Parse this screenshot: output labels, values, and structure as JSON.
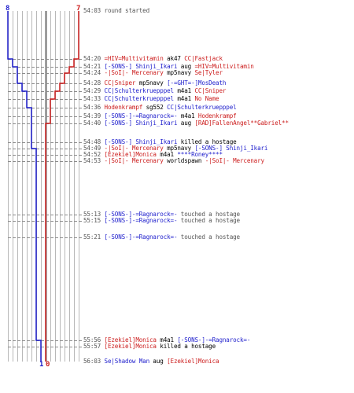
{
  "colors": {
    "team_blue": "#1d1dcc",
    "team_red": "#cc1d1d",
    "gray_text": "#555555",
    "grid": "#b8b8b8",
    "guide": "#8c8c8c",
    "divider": "#6d6d6d"
  },
  "counts": {
    "blue_start": "8",
    "red_start": "7",
    "blue_end": "1",
    "red_end": "0"
  },
  "log": [
    {
      "time": "54:03",
      "parts": [
        {
          "text": "round started",
          "c": "gray"
        }
      ]
    },
    {
      "time": "54:20",
      "parts": [
        {
          "text": "=HIV=Multivitamin",
          "c": "red"
        },
        {
          "text": " ak47 ",
          "c": "black"
        },
        {
          "text": "CC|Fastjack",
          "c": "red"
        }
      ]
    },
    {
      "time": "54:21",
      "parts": [
        {
          "text": "[-SONS-] Shinji_Ikari",
          "c": "blue"
        },
        {
          "text": " aug ",
          "c": "black"
        },
        {
          "text": "=HIV=Multivitamin",
          "c": "red"
        }
      ]
    },
    {
      "time": "54:24",
      "parts": [
        {
          "text": "-|SoI|- Mercenary",
          "c": "red"
        },
        {
          "text": " mp5navy ",
          "c": "black"
        },
        {
          "text": "Se|Tyler",
          "c": "red"
        }
      ]
    },
    {
      "time": "54:28",
      "parts": [
        {
          "text": "CC|Sniper",
          "c": "red"
        },
        {
          "text": " mp5navy ",
          "c": "black"
        },
        {
          "text": "[-=GHT=-]MosDeath",
          "c": "blue"
        }
      ]
    },
    {
      "time": "54:29",
      "parts": [
        {
          "text": "CC|Schulterkruepppel",
          "c": "blue"
        },
        {
          "text": " m4a1 ",
          "c": "black"
        },
        {
          "text": "CC|Sniper",
          "c": "red"
        }
      ]
    },
    {
      "time": "54:33",
      "parts": [
        {
          "text": "CC|Schulterkruepppel",
          "c": "blue"
        },
        {
          "text": " m4a1 ",
          "c": "black"
        },
        {
          "text": "No Name",
          "c": "red"
        }
      ]
    },
    {
      "time": "54:36",
      "parts": [
        {
          "text": "Hodenkrampf",
          "c": "red"
        },
        {
          "text": " sg552 ",
          "c": "black"
        },
        {
          "text": "CC|Schulterkruepppel",
          "c": "blue"
        }
      ]
    },
    {
      "time": "54:39",
      "parts": [
        {
          "text": "[-SONS-]-=Ragnarock=-",
          "c": "blue"
        },
        {
          "text": " m4a1 ",
          "c": "black"
        },
        {
          "text": "Hodenkrampf",
          "c": "red"
        }
      ]
    },
    {
      "time": "54:40",
      "parts": [
        {
          "text": "[-SONS-] Shinji_Ikari",
          "c": "blue"
        },
        {
          "text": " aug ",
          "c": "black"
        },
        {
          "text": "[RAD]FallenAngel**Gabriel**",
          "c": "red"
        }
      ]
    },
    {
      "time": "54:48",
      "parts": [
        {
          "text": "[-SONS-] Shinji_Ikari",
          "c": "blue"
        },
        {
          "text": " killed a hostage",
          "c": "black"
        }
      ]
    },
    {
      "time": "54:49",
      "parts": [
        {
          "text": "-|SoI|- Mercenary",
          "c": "red"
        },
        {
          "text": " mp5navy ",
          "c": "black"
        },
        {
          "text": "[-SONS-] Shinji_Ikari",
          "c": "blue"
        }
      ]
    },
    {
      "time": "54:52",
      "parts": [
        {
          "text": "[Ezekiel]Monica",
          "c": "red"
        },
        {
          "text": " m4a1 ",
          "c": "black"
        },
        {
          "text": "****Roney****",
          "c": "blue"
        }
      ]
    },
    {
      "time": "54:53",
      "parts": [
        {
          "text": "-|SoI|- Mercenary",
          "c": "red"
        },
        {
          "text": " worldspawn ",
          "c": "black"
        },
        {
          "text": "-|SoI|- Mercenary",
          "c": "red"
        }
      ]
    },
    {
      "time": "55:13",
      "parts": [
        {
          "text": "[-SONS-]-=Ragnarock=-",
          "c": "blue"
        },
        {
          "text": " touched a hostage",
          "c": "gray"
        }
      ]
    },
    {
      "time": "55:15",
      "parts": [
        {
          "text": "[-SONS-]-=Ragnarock=-",
          "c": "blue"
        },
        {
          "text": " touched a hostage",
          "c": "gray"
        }
      ]
    },
    {
      "time": "55:21",
      "parts": [
        {
          "text": "[-SONS-]-=Ragnarock=-",
          "c": "blue"
        },
        {
          "text": " touched a hostage",
          "c": "gray"
        }
      ]
    },
    {
      "time": "55:56",
      "parts": [
        {
          "text": "[Ezekiel]Monica",
          "c": "red"
        },
        {
          "text": " m4a1 ",
          "c": "black"
        },
        {
          "text": "[-SONS-]-=Ragnarock=-",
          "c": "blue"
        }
      ]
    },
    {
      "time": "55:57",
      "parts": [
        {
          "text": "[Ezekiel]Monica",
          "c": "red"
        },
        {
          "text": " killed a hostage",
          "c": "black"
        }
      ]
    },
    {
      "time": "56:03",
      "parts": [
        {
          "text": "Se|Shadow Man",
          "c": "blue"
        },
        {
          "text": " aug ",
          "c": "black"
        },
        {
          "text": "[Ezekiel]Monica",
          "c": "red"
        }
      ]
    }
  ]
}
